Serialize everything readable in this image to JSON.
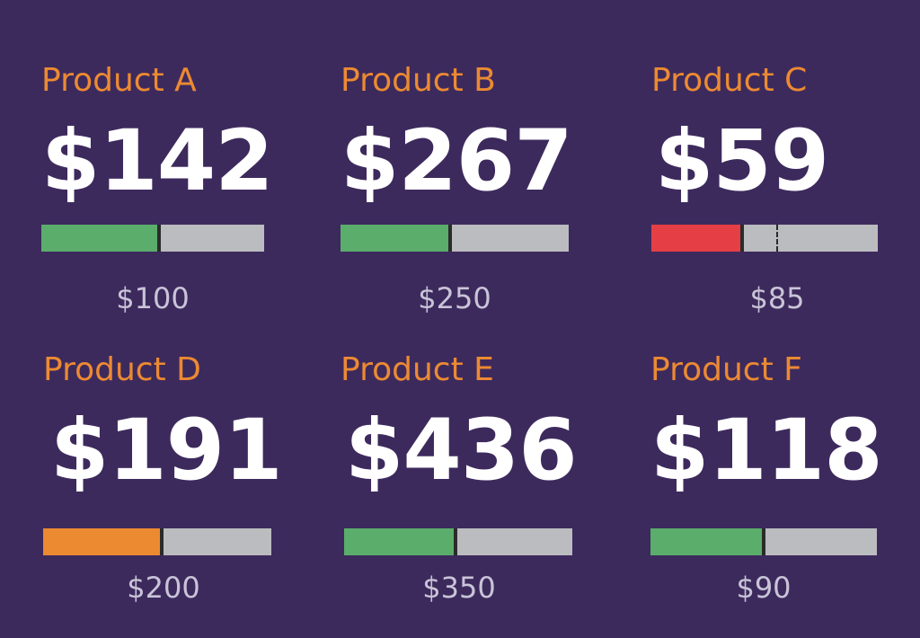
{
  "products": [
    {
      "name": "Product A",
      "value": "$142",
      "target": "$100",
      "fill_fraction": 0.53,
      "status_color": "#5aad6b",
      "target_tick": false
    },
    {
      "name": "Product B",
      "value": "$267",
      "target": "$250",
      "fill_fraction": 0.48,
      "status_color": "#5aad6b",
      "target_tick": false
    },
    {
      "name": "Product C",
      "value": "$59",
      "target": "$85",
      "fill_fraction": 0.4,
      "status_color": "#e53f45",
      "target_tick": true,
      "target_tick_fraction": 0.55
    },
    {
      "name": "Product D",
      "value": "$191",
      "target": "$200",
      "fill_fraction": 0.52,
      "status_color": "#ec8a32",
      "target_tick": false
    },
    {
      "name": "Product E",
      "value": "$436",
      "target": "$350",
      "fill_fraction": 0.49,
      "status_color": "#5aad6b",
      "target_tick": false
    },
    {
      "name": "Product F",
      "value": "$118",
      "target": "$90",
      "fill_fraction": 0.5,
      "status_color": "#5aad6b",
      "target_tick": false
    }
  ]
}
